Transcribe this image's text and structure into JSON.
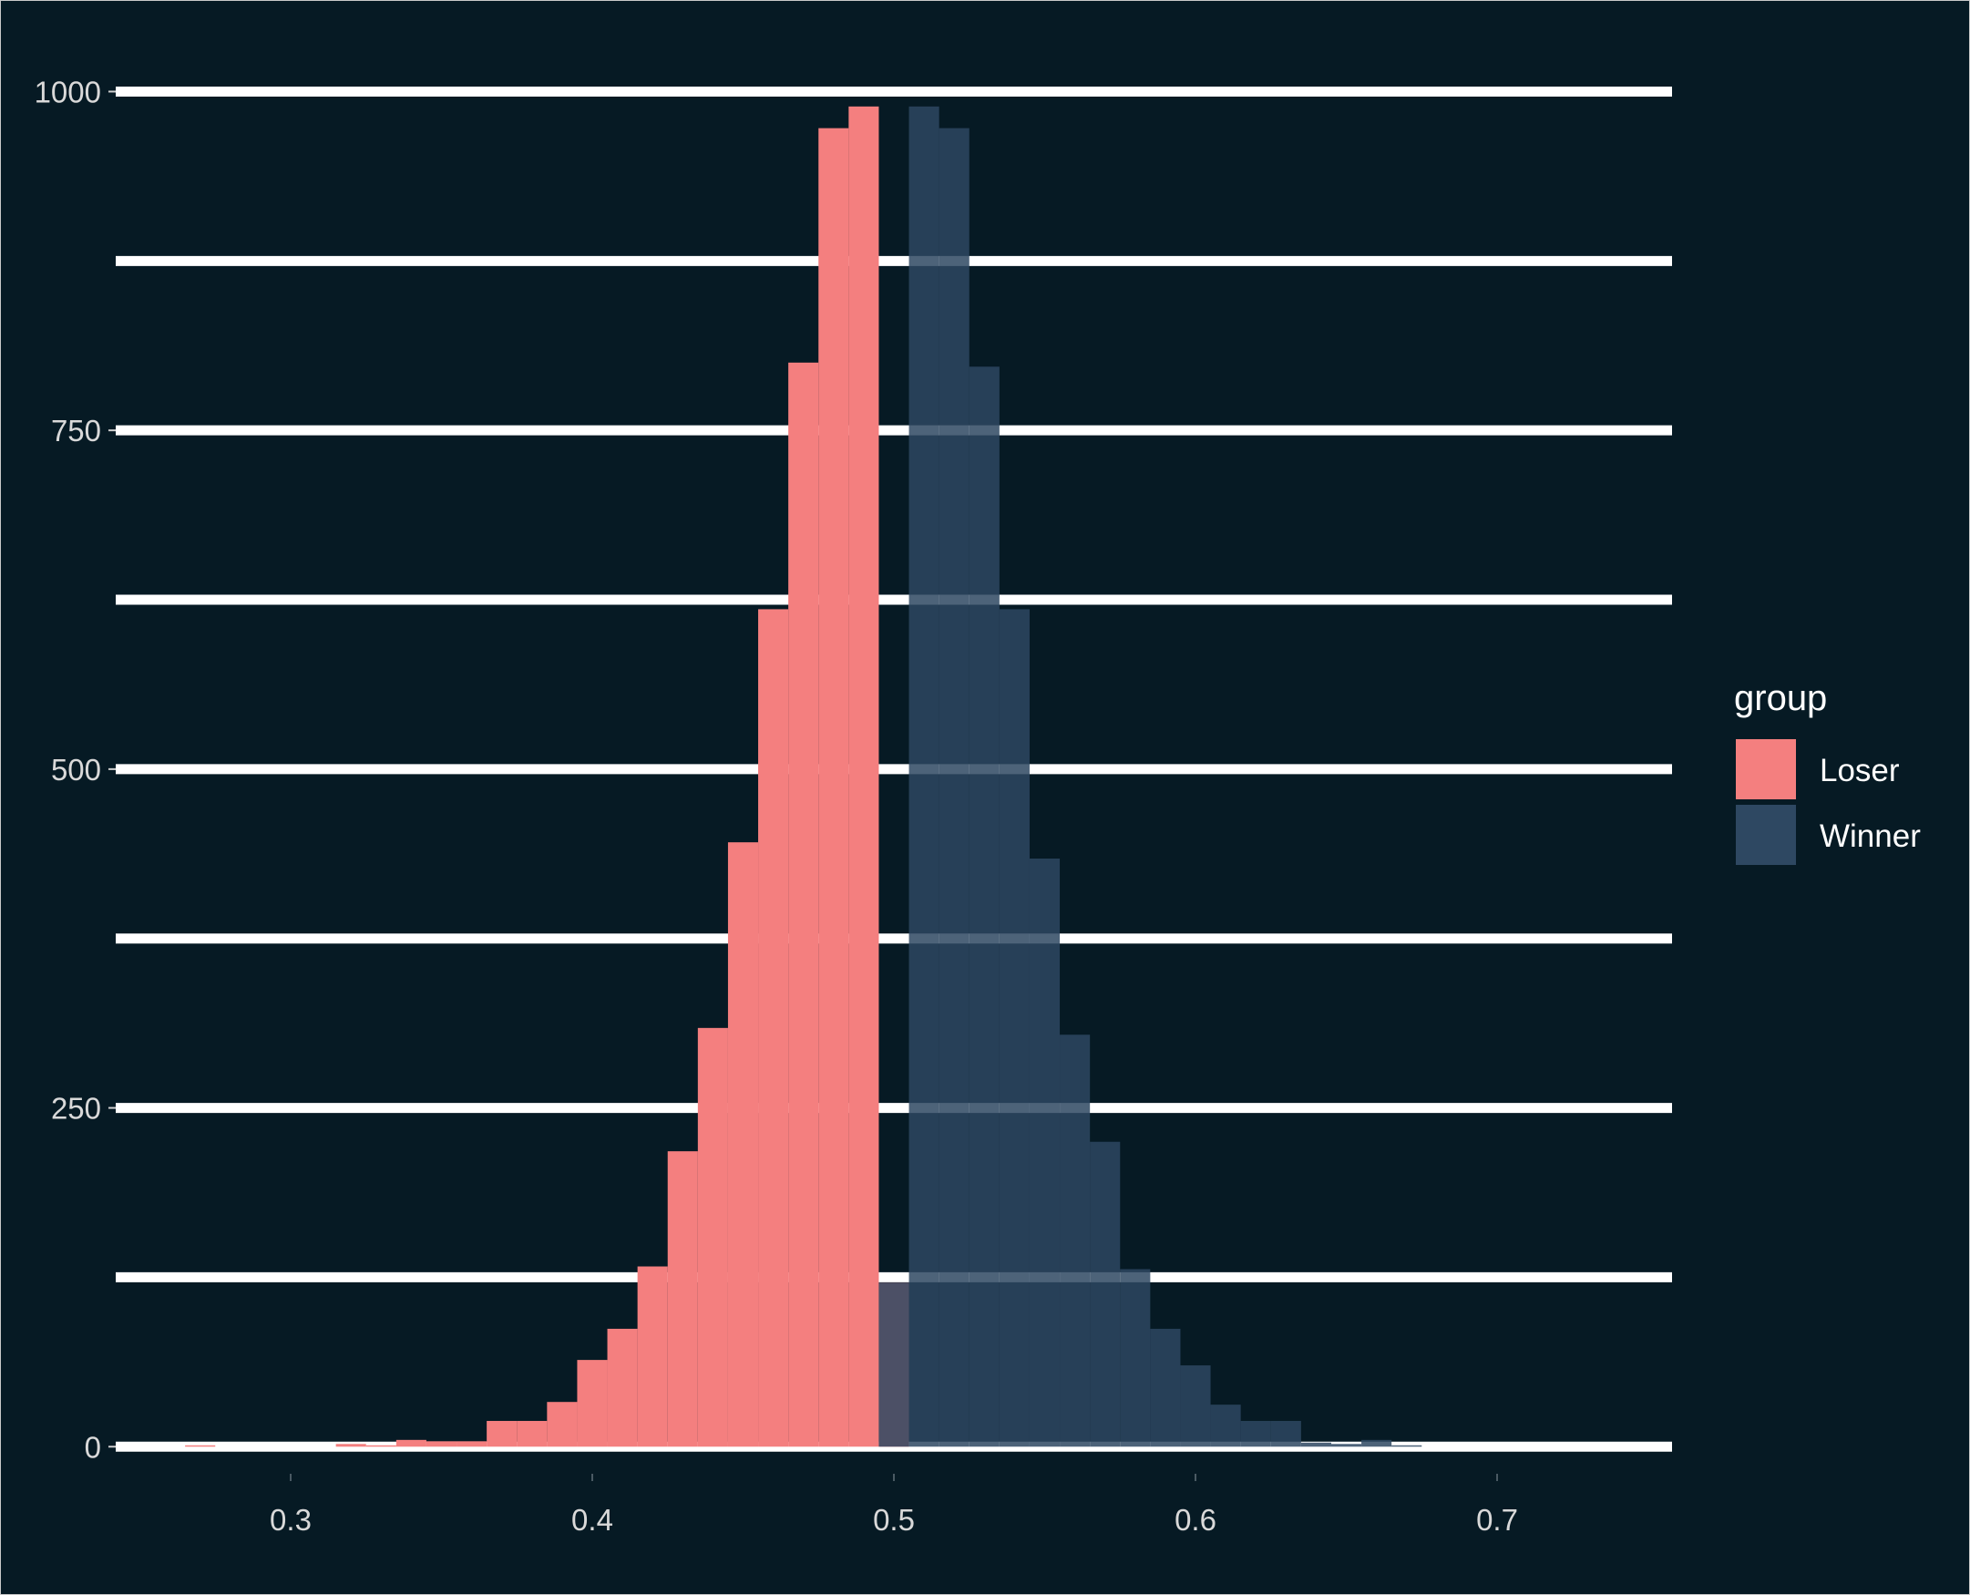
{
  "chart_data": {
    "type": "bar",
    "subtype": "histogram-overlay",
    "title": "",
    "xlabel": "",
    "ylabel": "",
    "xlim": [
      0.242,
      0.758
    ],
    "ylim": [
      -20,
      1040
    ],
    "x_ticks": [
      {
        "value": 0.3,
        "label": "0.3"
      },
      {
        "value": 0.4,
        "label": "0.4"
      },
      {
        "value": 0.5,
        "label": "0.5"
      },
      {
        "value": 0.6,
        "label": "0.6"
      },
      {
        "value": 0.7,
        "label": "0.7"
      }
    ],
    "y_ticks": [
      {
        "value": 0,
        "label": "0"
      },
      {
        "value": 250,
        "label": "250"
      },
      {
        "value": 500,
        "label": "500"
      },
      {
        "value": 750,
        "label": "750"
      },
      {
        "value": 1000,
        "label": "1000"
      }
    ],
    "y_gridlines": [
      0,
      125,
      250,
      375,
      500,
      625,
      750,
      875,
      1000
    ],
    "grid": {
      "horizontal": true,
      "vertical": false,
      "color": "#ffffff"
    },
    "background_color": "#061a24",
    "bin_width": 0.01,
    "legend": {
      "title": "group",
      "placement": "right",
      "entries": [
        {
          "label": "Loser",
          "color": "#f47f7f"
        },
        {
          "label": "Winner",
          "color": "#2e4862"
        }
      ]
    },
    "series": [
      {
        "name": "Loser",
        "color": "#f47f7f",
        "opacity": 1.0,
        "bins": [
          {
            "x": 0.27,
            "count": 1
          },
          {
            "x": 0.32,
            "count": 2
          },
          {
            "x": 0.33,
            "count": 1
          },
          {
            "x": 0.34,
            "count": 5
          },
          {
            "x": 0.35,
            "count": 4
          },
          {
            "x": 0.36,
            "count": 4
          },
          {
            "x": 0.37,
            "count": 19
          },
          {
            "x": 0.38,
            "count": 19
          },
          {
            "x": 0.39,
            "count": 33
          },
          {
            "x": 0.4,
            "count": 64
          },
          {
            "x": 0.41,
            "count": 87
          },
          {
            "x": 0.42,
            "count": 133
          },
          {
            "x": 0.43,
            "count": 218
          },
          {
            "x": 0.44,
            "count": 309
          },
          {
            "x": 0.45,
            "count": 446
          },
          {
            "x": 0.46,
            "count": 618
          },
          {
            "x": 0.47,
            "count": 800
          },
          {
            "x": 0.48,
            "count": 973
          },
          {
            "x": 0.49,
            "count": 989
          },
          {
            "x": 0.5,
            "count": 121
          }
        ]
      },
      {
        "name": "Winner",
        "color": "#2e4862",
        "opacity": 0.85,
        "bins": [
          {
            "x": 0.5,
            "count": 121
          },
          {
            "x": 0.51,
            "count": 989
          },
          {
            "x": 0.52,
            "count": 973
          },
          {
            "x": 0.53,
            "count": 797
          },
          {
            "x": 0.54,
            "count": 618
          },
          {
            "x": 0.55,
            "count": 434
          },
          {
            "x": 0.56,
            "count": 304
          },
          {
            "x": 0.57,
            "count": 225
          },
          {
            "x": 0.58,
            "count": 131
          },
          {
            "x": 0.59,
            "count": 87
          },
          {
            "x": 0.6,
            "count": 60
          },
          {
            "x": 0.61,
            "count": 31
          },
          {
            "x": 0.62,
            "count": 19
          },
          {
            "x": 0.63,
            "count": 19
          },
          {
            "x": 0.64,
            "count": 3
          },
          {
            "x": 0.65,
            "count": 2
          },
          {
            "x": 0.66,
            "count": 5
          },
          {
            "x": 0.67,
            "count": 1
          }
        ]
      }
    ]
  }
}
